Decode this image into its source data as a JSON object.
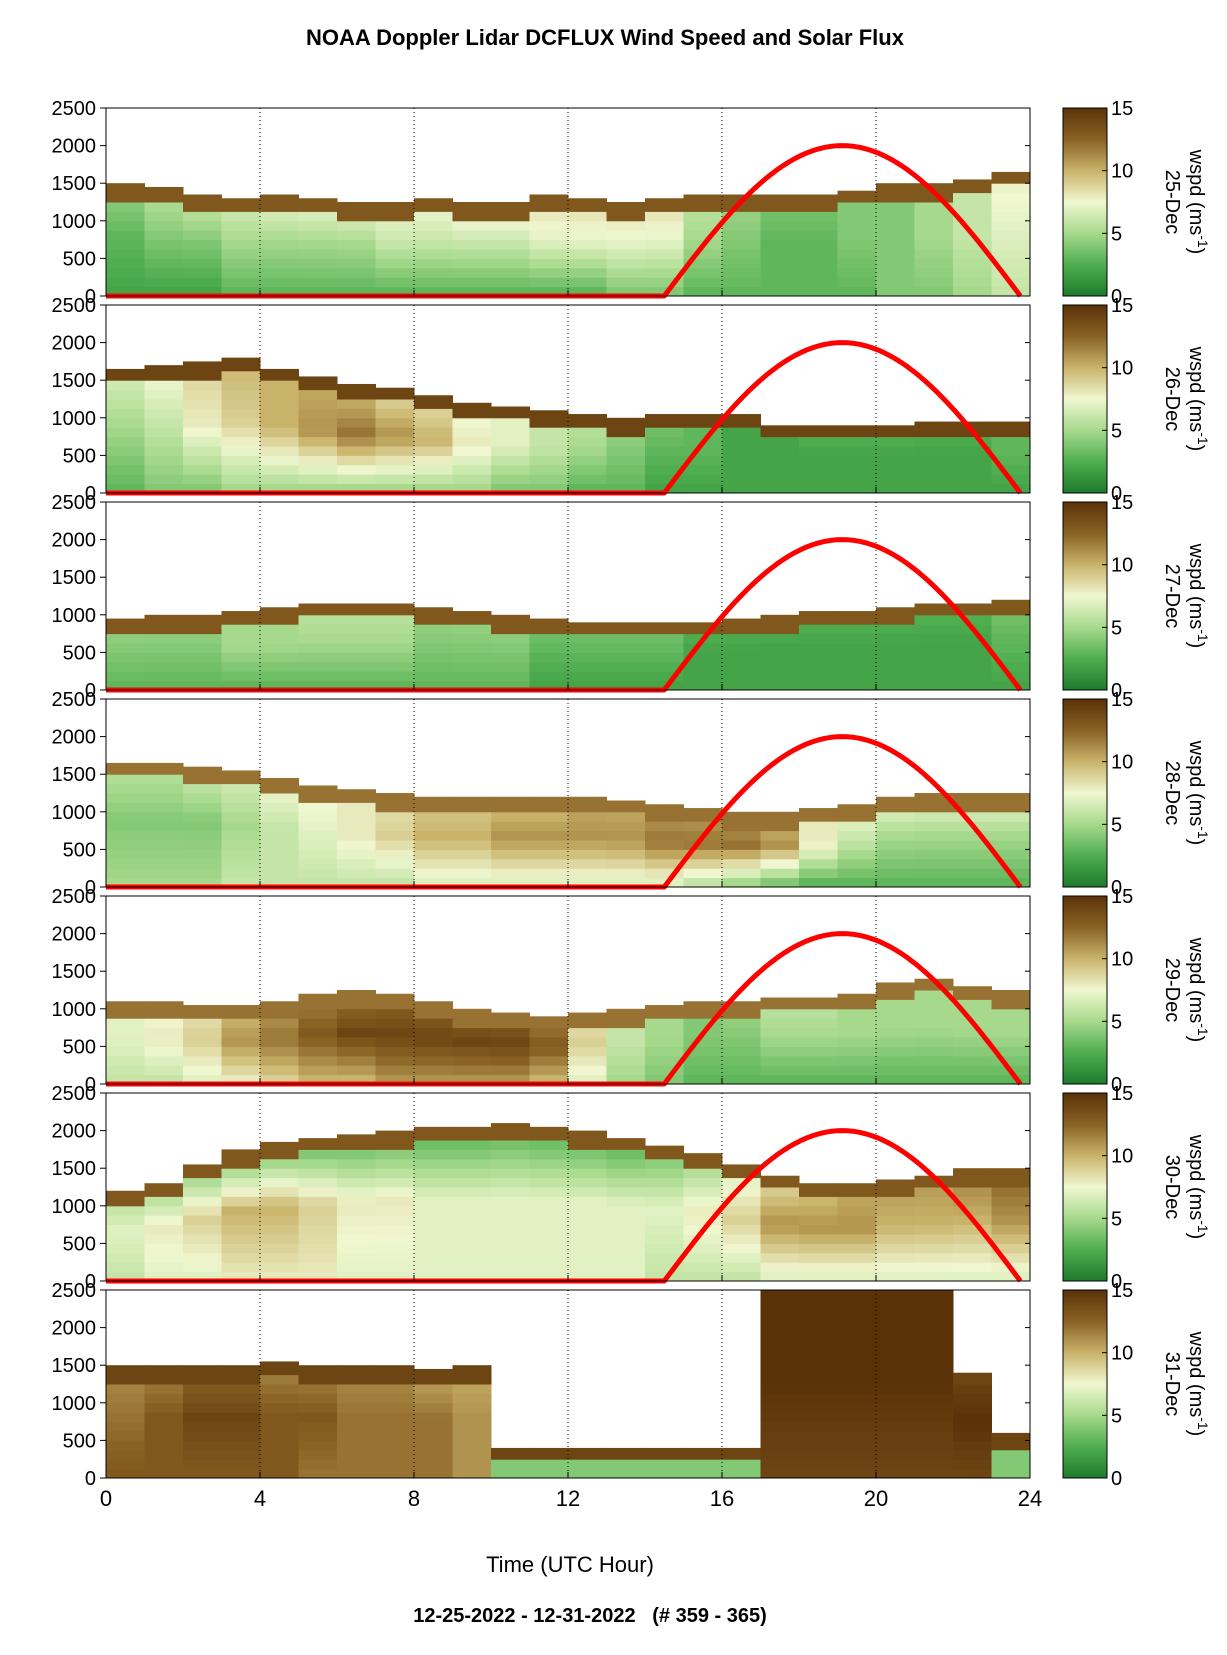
{
  "chart_data": {
    "type": "heatmap",
    "title": "NOAA Doppler Lidar DCFLUX Wind Speed and Solar Flux",
    "footer": "12-25-2022 - 12-31-2022   (# 359 - 365)",
    "xlabel": "Time (UTC Hour)",
    "xlim": [
      0,
      24
    ],
    "xticks": [
      0,
      4,
      8,
      12,
      16,
      20,
      24
    ],
    "ylim": [
      0,
      2500
    ],
    "yticks": [
      0,
      500,
      1000,
      1500,
      2000,
      2500
    ],
    "grid_vertical_dotted": [
      4,
      8,
      12,
      16,
      20
    ],
    "colorbar": {
      "label": "wspd (ms-1)",
      "label_main": "wspd (ms",
      "label_sup": "-1",
      "label_close": ")",
      "range": [
        0,
        15
      ],
      "ticks": [
        0,
        5,
        10,
        15
      ],
      "colors": [
        "#1e7a2c",
        "#4fae4f",
        "#a6d98c",
        "#f0f7d0",
        "#c9b36a",
        "#8a6224",
        "#5a3208"
      ]
    },
    "solar_flux": {
      "color": "#ff0000",
      "sunrise_hour": 14.5,
      "solar_noon_hour": 19.0,
      "sunset_hour": 23.75,
      "peak_value_on_height_axis": 2000
    },
    "panels": [
      {
        "date": "25-Dec",
        "boundary_layer_top": [
          1500,
          1450,
          1350,
          1300,
          1350,
          1300,
          1250,
          1250,
          1300,
          1250,
          1250,
          1350,
          1300,
          1250,
          1300,
          1350,
          1350,
          1350,
          1350,
          1400,
          1500,
          1500,
          1550,
          1650
        ],
        "profile": [
          [
            2,
            3,
            5
          ],
          [
            2,
            4,
            6
          ],
          [
            2,
            4,
            7
          ],
          [
            3,
            5,
            7
          ],
          [
            3,
            5,
            8
          ],
          [
            3,
            5,
            8
          ],
          [
            3,
            5,
            8
          ],
          [
            3,
            6,
            8
          ],
          [
            3,
            6,
            8
          ],
          [
            3,
            6,
            9
          ],
          [
            3,
            6,
            9
          ],
          [
            3,
            7,
            9
          ],
          [
            3,
            7,
            9
          ],
          [
            4,
            7,
            9
          ],
          [
            4,
            7,
            9
          ],
          [
            3,
            5,
            6
          ],
          [
            3,
            4,
            5
          ],
          [
            3,
            3,
            4
          ],
          [
            3,
            3,
            4
          ],
          [
            3,
            4,
            4
          ],
          [
            4,
            4,
            4
          ],
          [
            4,
            5,
            5
          ],
          [
            5,
            6,
            6
          ],
          [
            6,
            7,
            8
          ]
        ],
        "top_cap": 13
      },
      {
        "date": "26-Dec",
        "boundary_layer_top": [
          1650,
          1700,
          1750,
          1800,
          1650,
          1550,
          1450,
          1400,
          1300,
          1200,
          1150,
          1100,
          1050,
          1000,
          1050,
          1050,
          1050,
          900,
          900,
          900,
          900,
          950,
          950,
          950
        ],
        "profile": [
          [
            3,
            5,
            7
          ],
          [
            4,
            6,
            8
          ],
          [
            4,
            8,
            9
          ],
          [
            5,
            9,
            10
          ],
          [
            5,
            10,
            10
          ],
          [
            5,
            11,
            10
          ],
          [
            5,
            12,
            9
          ],
          [
            5,
            11,
            8
          ],
          [
            5,
            10,
            8
          ],
          [
            5,
            8,
            7
          ],
          [
            4,
            7,
            7
          ],
          [
            4,
            6,
            6
          ],
          [
            3,
            5,
            6
          ],
          [
            3,
            4,
            5
          ],
          [
            2,
            3,
            4
          ],
          [
            2,
            3,
            3
          ],
          [
            2,
            2,
            2
          ],
          [
            2,
            2,
            2
          ],
          [
            2,
            2,
            3
          ],
          [
            2,
            2,
            3
          ],
          [
            2,
            2,
            3
          ],
          [
            2,
            2,
            3
          ],
          [
            2,
            2,
            3
          ],
          [
            2,
            3,
            3
          ]
        ],
        "top_cap": 14
      },
      {
        "date": "27-Dec",
        "boundary_layer_top": [
          950,
          1000,
          1000,
          1050,
          1100,
          1150,
          1150,
          1150,
          1100,
          1050,
          1000,
          950,
          900,
          900,
          900,
          900,
          950,
          1000,
          1050,
          1050,
          1100,
          1150,
          1150,
          1200
        ],
        "profile": [
          [
            3,
            4,
            5
          ],
          [
            3,
            4,
            5
          ],
          [
            3,
            4,
            5
          ],
          [
            3,
            5,
            5
          ],
          [
            3,
            5,
            5
          ],
          [
            3,
            5,
            6
          ],
          [
            3,
            5,
            6
          ],
          [
            3,
            5,
            6
          ],
          [
            3,
            4,
            5
          ],
          [
            3,
            4,
            5
          ],
          [
            3,
            4,
            5
          ],
          [
            2,
            3,
            4
          ],
          [
            2,
            3,
            4
          ],
          [
            2,
            3,
            4
          ],
          [
            2,
            3,
            4
          ],
          [
            2,
            2,
            3
          ],
          [
            2,
            2,
            3
          ],
          [
            2,
            2,
            3
          ],
          [
            2,
            2,
            3
          ],
          [
            2,
            2,
            3
          ],
          [
            2,
            2,
            3
          ],
          [
            2,
            2,
            3
          ],
          [
            2,
            2,
            3
          ],
          [
            2,
            3,
            4
          ]
        ],
        "top_cap": 13
      },
      {
        "date": "28-Dec",
        "boundary_layer_top": [
          1650,
          1650,
          1600,
          1550,
          1450,
          1350,
          1300,
          1250,
          1200,
          1200,
          1200,
          1200,
          1200,
          1150,
          1100,
          1050,
          1000,
          1000,
          1050,
          1100,
          1200,
          1250,
          1250,
          1250
        ],
        "profile": [
          [
            5,
            4,
            6
          ],
          [
            5,
            4,
            6
          ],
          [
            5,
            4,
            7
          ],
          [
            6,
            5,
            7
          ],
          [
            6,
            6,
            8
          ],
          [
            6,
            7,
            8
          ],
          [
            6,
            8,
            8
          ],
          [
            6,
            9,
            8
          ],
          [
            7,
            10,
            9
          ],
          [
            7,
            10,
            9
          ],
          [
            7,
            11,
            9
          ],
          [
            7,
            11,
            9
          ],
          [
            7,
            11,
            10
          ],
          [
            7,
            11,
            10
          ],
          [
            7,
            12,
            10
          ],
          [
            6,
            12,
            10
          ],
          [
            5,
            12,
            10
          ],
          [
            4,
            11,
            9
          ],
          [
            3,
            8,
            8
          ],
          [
            3,
            6,
            8
          ],
          [
            3,
            5,
            8
          ],
          [
            3,
            5,
            8
          ],
          [
            3,
            5,
            8
          ],
          [
            3,
            5,
            8
          ]
        ],
        "top_cap": 12
      },
      {
        "date": "29-Dec",
        "boundary_layer_top": [
          1100,
          1100,
          1050,
          1050,
          1100,
          1200,
          1250,
          1200,
          1100,
          1000,
          950,
          900,
          950,
          1000,
          1050,
          1100,
          1100,
          1150,
          1150,
          1200,
          1350,
          1400,
          1300,
          1250
        ],
        "profile": [
          [
            6,
            7,
            7
          ],
          [
            6,
            8,
            7
          ],
          [
            7,
            9,
            8
          ],
          [
            8,
            11,
            9
          ],
          [
            9,
            12,
            10
          ],
          [
            10,
            13,
            11
          ],
          [
            10,
            14,
            11
          ],
          [
            11,
            14,
            12
          ],
          [
            11,
            14,
            12
          ],
          [
            11,
            14,
            12
          ],
          [
            11,
            14,
            12
          ],
          [
            10,
            13,
            11
          ],
          [
            7,
            9,
            8
          ],
          [
            5,
            6,
            6
          ],
          [
            4,
            5,
            5
          ],
          [
            3,
            4,
            4
          ],
          [
            3,
            4,
            5
          ],
          [
            3,
            5,
            6
          ],
          [
            3,
            5,
            6
          ],
          [
            3,
            5,
            5
          ],
          [
            3,
            5,
            5
          ],
          [
            3,
            5,
            5
          ],
          [
            3,
            5,
            5
          ],
          [
            3,
            5,
            5
          ]
        ],
        "top_cap": 12
      },
      {
        "date": "30-Dec",
        "boundary_layer_top": [
          1200,
          1300,
          1550,
          1750,
          1850,
          1900,
          1950,
          2000,
          2050,
          2050,
          2100,
          2050,
          2000,
          1900,
          1800,
          1700,
          1550,
          1400,
          1300,
          1300,
          1350,
          1400,
          1500,
          1500
        ],
        "profile": [
          [
            6,
            7,
            5
          ],
          [
            7,
            8,
            4
          ],
          [
            7,
            9,
            3
          ],
          [
            8,
            10,
            2
          ],
          [
            8,
            10,
            2
          ],
          [
            8,
            9,
            2
          ],
          [
            7,
            8,
            2
          ],
          [
            7,
            8,
            2
          ],
          [
            7,
            7,
            2
          ],
          [
            7,
            7,
            2
          ],
          [
            7,
            7,
            2
          ],
          [
            7,
            7,
            2
          ],
          [
            7,
            7,
            2
          ],
          [
            7,
            7,
            2
          ],
          [
            6,
            7,
            3
          ],
          [
            6,
            8,
            4
          ],
          [
            6,
            9,
            6
          ],
          [
            7,
            11,
            8
          ],
          [
            7,
            11,
            9
          ],
          [
            7,
            11,
            10
          ],
          [
            7,
            10,
            11
          ],
          [
            7,
            10,
            11
          ],
          [
            7,
            10,
            12
          ],
          [
            7,
            11,
            13
          ]
        ],
        "top_cap": 13
      },
      {
        "date": "31-Dec",
        "boundary_layer_top": [
          1500,
          1500,
          1500,
          1500,
          1550,
          1500,
          1500,
          1500,
          1450,
          1500,
          400,
          400,
          400,
          400,
          400,
          400,
          400,
          2500,
          2500,
          2500,
          2500,
          2500,
          1400,
          600
        ],
        "profile": [
          [
            13,
            12,
            11
          ],
          [
            13,
            13,
            11
          ],
          [
            13,
            14,
            12
          ],
          [
            13,
            14,
            12
          ],
          [
            13,
            13,
            11
          ],
          [
            12,
            13,
            11
          ],
          [
            12,
            12,
            11
          ],
          [
            12,
            12,
            11
          ],
          [
            12,
            12,
            10
          ],
          [
            11,
            11,
            10
          ],
          [
            4,
            4,
            4
          ],
          [
            4,
            4,
            4
          ],
          [
            4,
            4,
            4
          ],
          [
            4,
            4,
            4
          ],
          [
            4,
            4,
            4
          ],
          [
            4,
            4,
            4
          ],
          [
            4,
            4,
            4
          ],
          [
            14,
            15,
            15
          ],
          [
            14,
            15,
            15
          ],
          [
            14,
            15,
            15
          ],
          [
            14,
            15,
            15
          ],
          [
            14,
            15,
            15
          ],
          [
            14,
            15,
            14
          ],
          [
            4,
            4,
            4
          ]
        ],
        "top_cap": 14
      }
    ]
  }
}
